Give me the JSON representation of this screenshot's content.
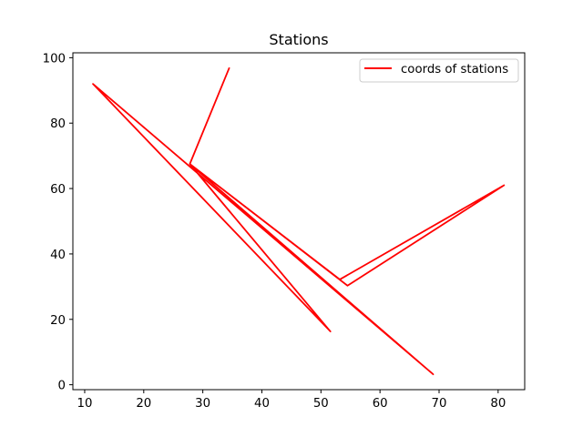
{
  "chart_data": {
    "type": "line",
    "title": "Stations",
    "xlabel": "",
    "ylabel": "",
    "xlim": [
      8,
      84.5
    ],
    "ylim": [
      -1.5,
      101.5
    ],
    "xticks": [
      10,
      20,
      30,
      40,
      50,
      60,
      70,
      80
    ],
    "yticks": [
      0,
      20,
      40,
      60,
      80,
      100
    ],
    "grid": false,
    "legend_position": "top-right",
    "series": [
      {
        "name": "coords of stations",
        "color": "#ff0000",
        "x": [
          34.5,
          27.8,
          51.6,
          11.4,
          69.0,
          27.8,
          54.5,
          81.0,
          53.2,
          27.8,
          69.0
        ],
        "y": [
          97,
          67.5,
          16.3,
          92,
          3.2,
          67.5,
          30.3,
          61,
          32.2,
          67.5,
          3.2
        ]
      }
    ]
  }
}
